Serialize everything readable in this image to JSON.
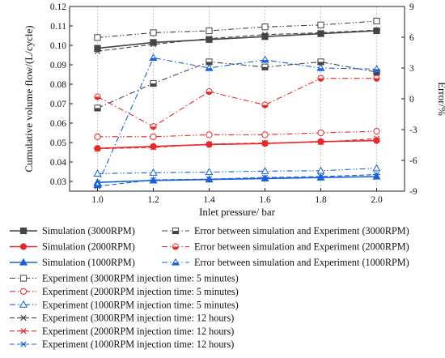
{
  "chart_data": {
    "type": "line",
    "x": [
      1.0,
      1.2,
      1.4,
      1.6,
      1.8,
      2.0
    ],
    "xlabel": "Inlet pressure/ bar",
    "ylabel": "Cumulative volume flow/(L/cycle)",
    "y2label": "Error/%",
    "xlim": [
      0.9,
      2.1
    ],
    "ylim": [
      0.025,
      0.12
    ],
    "y2lim": [
      -9,
      9
    ],
    "xticks": [
      "1.0",
      "1.2",
      "1.4",
      "1.6",
      "1.8",
      "2.0"
    ],
    "yticks": [
      "0.03",
      "0.04",
      "0.05",
      "0.06",
      "0.07",
      "0.08",
      "0.09",
      "0.10",
      "0.11",
      "0.12"
    ],
    "y2ticks": [
      "-9",
      "-6",
      "-3",
      "0",
      "3",
      "6",
      "9"
    ],
    "grid": "vertical dashed",
    "legend_position": "bottom",
    "colors": {
      "black": "#444444",
      "red": "#e8282b",
      "blue": "#1862d6"
    },
    "series": [
      {
        "name": "Simulation (3000RPM)",
        "axis": "left",
        "color": "#444444",
        "style": "solid",
        "marker": "square-filled",
        "values": [
          0.0985,
          0.1015,
          0.103,
          0.1045,
          0.106,
          0.1075
        ]
      },
      {
        "name": "Simulation (2000RPM)",
        "axis": "left",
        "color": "#e8282b",
        "style": "solid",
        "marker": "circle-filled",
        "values": [
          0.047,
          0.048,
          0.049,
          0.0495,
          0.0505,
          0.051
        ]
      },
      {
        "name": "Simulation (1000RPM)",
        "axis": "left",
        "color": "#1862d6",
        "style": "solid",
        "marker": "triangle-filled",
        "values": [
          0.0295,
          0.0305,
          0.031,
          0.0315,
          0.032,
          0.0325
        ]
      },
      {
        "name": "Error between simulation and Experiment (3000RPM)",
        "axis": "right",
        "color": "#444444",
        "style": "dashdot",
        "marker": "square-half",
        "values": [
          -0.9,
          1.5,
          3.6,
          3.1,
          3.6,
          2.6
        ]
      },
      {
        "name": "Error between simulation and Experiment (2000RPM)",
        "axis": "right",
        "color": "#e8282b",
        "style": "dashdot",
        "marker": "circle-half",
        "values": [
          0.2,
          -2.7,
          0.7,
          -0.6,
          2.0,
          2.0
        ]
      },
      {
        "name": "Error between simulation and Experiment (1000RPM)",
        "axis": "right",
        "color": "#1862d6",
        "style": "dashdot",
        "marker": "triangle-half",
        "values": [
          -8.4,
          4.0,
          3.0,
          3.8,
          3.0,
          2.9
        ]
      },
      {
        "name": "Experiment (3000RPM injection time: 5 minutes)",
        "axis": "left",
        "color": "#444444",
        "style": "dashdotdot",
        "marker": "square-open",
        "values": [
          0.104,
          0.1065,
          0.1075,
          0.1095,
          0.1105,
          0.1125
        ]
      },
      {
        "name": "Experiment (2000RPM injection time: 5 minutes)",
        "axis": "left",
        "color": "#e8282b",
        "style": "dashdotdot",
        "marker": "circle-open",
        "values": [
          0.053,
          0.053,
          0.054,
          0.054,
          0.055,
          0.0558
        ]
      },
      {
        "name": "Experiment (1000RPM injection time: 5 minutes)",
        "axis": "left",
        "color": "#1862d6",
        "style": "dashdotdot",
        "marker": "triangle-open",
        "values": [
          0.034,
          0.0345,
          0.0348,
          0.0353,
          0.0355,
          0.0368
        ]
      },
      {
        "name": "Experiment (3000RPM injection time: 12 hours)",
        "axis": "left",
        "color": "#444444",
        "style": "dashed",
        "marker": "x-open",
        "values": [
          0.097,
          0.1005,
          0.1035,
          0.1055,
          0.1065,
          0.1078
        ]
      },
      {
        "name": "Experiment (2000RPM injection time: 12 hours)",
        "axis": "left",
        "color": "#e8282b",
        "style": "dashed",
        "marker": "x-open",
        "values": [
          0.0468,
          0.0475,
          0.0492,
          0.0498,
          0.0502,
          0.052
        ]
      },
      {
        "name": "Experiment (1000RPM injection time: 12 hours)",
        "axis": "left",
        "color": "#1862d6",
        "style": "dashed",
        "marker": "x-open",
        "values": [
          0.0275,
          0.0308,
          0.0312,
          0.032,
          0.0325,
          0.0335
        ]
      }
    ]
  }
}
